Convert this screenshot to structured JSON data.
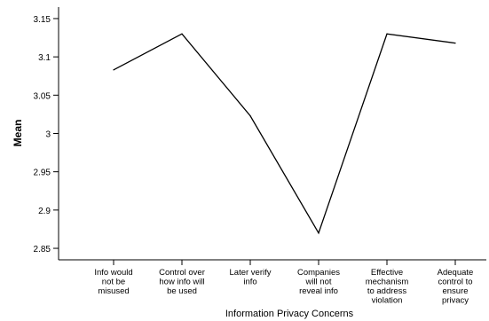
{
  "chart_data": {
    "type": "line",
    "categories": [
      "Info would not be misused",
      "Control over how info will be used",
      "Later verify info",
      "Companies will not reveal info",
      "Effective mechanism to address violation",
      "Adequate control to ensure privacy"
    ],
    "category_labels": [
      [
        "Info would",
        "not be",
        "misused"
      ],
      [
        "Control over",
        "how info will",
        "be used"
      ],
      [
        "Later verify",
        "info"
      ],
      [
        "Companies",
        "will not",
        "reveal info"
      ],
      [
        "Effective",
        "mechanism",
        "to address",
        "violation"
      ],
      [
        "Adequate",
        "control to",
        "ensure",
        "privacy"
      ]
    ],
    "values": [
      3.083,
      3.13,
      3.023,
      2.87,
      3.13,
      3.118
    ],
    "xlabel": "Information Privacy Concerns",
    "ylabel": "Mean",
    "yticks": [
      "2.85",
      "2.9",
      "2.95",
      "3",
      "3.05",
      "3.1",
      "3.15"
    ],
    "ylim": [
      2.835,
      3.165
    ],
    "grid": false,
    "line_color": "#000000"
  }
}
